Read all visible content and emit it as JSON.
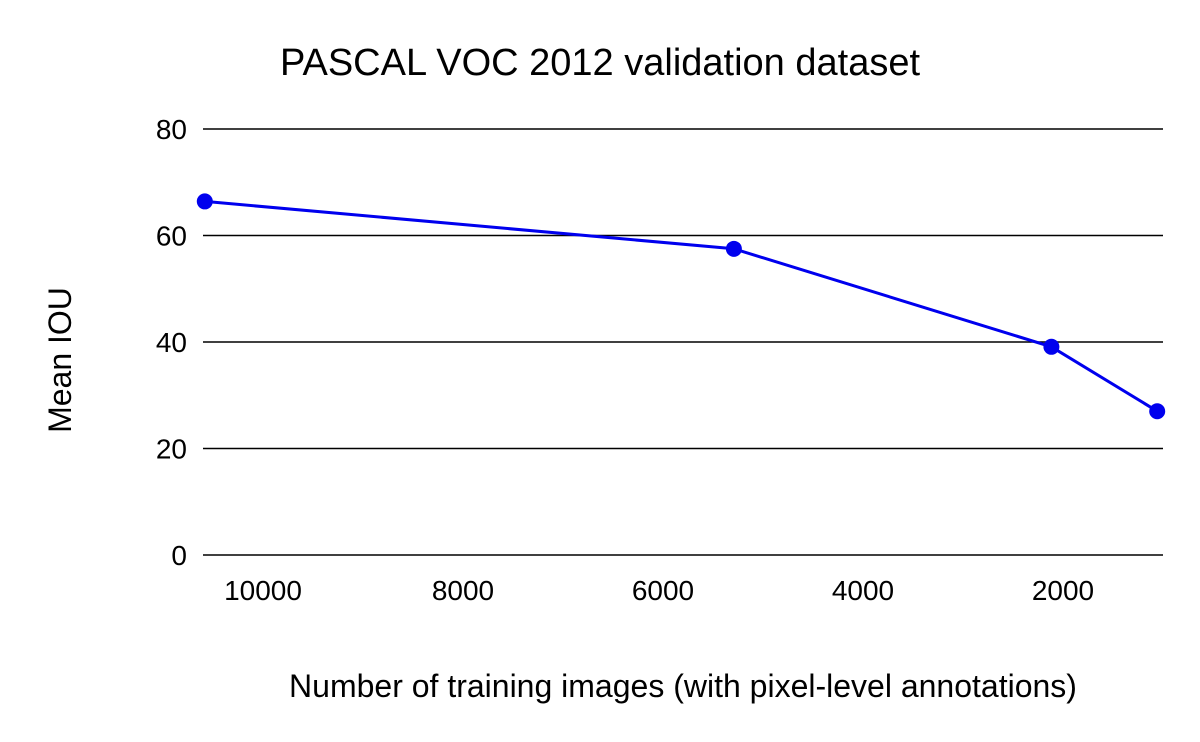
{
  "chart_data": {
    "type": "line",
    "title": "PASCAL VOC 2012 validation dataset",
    "xlabel": "Number of training images (with pixel-level annotations)",
    "ylabel": "Mean IOU",
    "x_reversed": true,
    "xlim": [
      10600,
      1000
    ],
    "ylim": [
      0,
      80
    ],
    "xticks": [
      10000,
      8000,
      6000,
      4000,
      2000
    ],
    "yticks": [
      0,
      20,
      40,
      60,
      80
    ],
    "grid": "horizontal",
    "series": [
      {
        "color": "#0000ee",
        "points": [
          {
            "x": 10582,
            "y": 66.4
          },
          {
            "x": 5291,
            "y": 57.5
          },
          {
            "x": 2116,
            "y": 39.1
          },
          {
            "x": 1058,
            "y": 27.0
          }
        ]
      }
    ]
  }
}
